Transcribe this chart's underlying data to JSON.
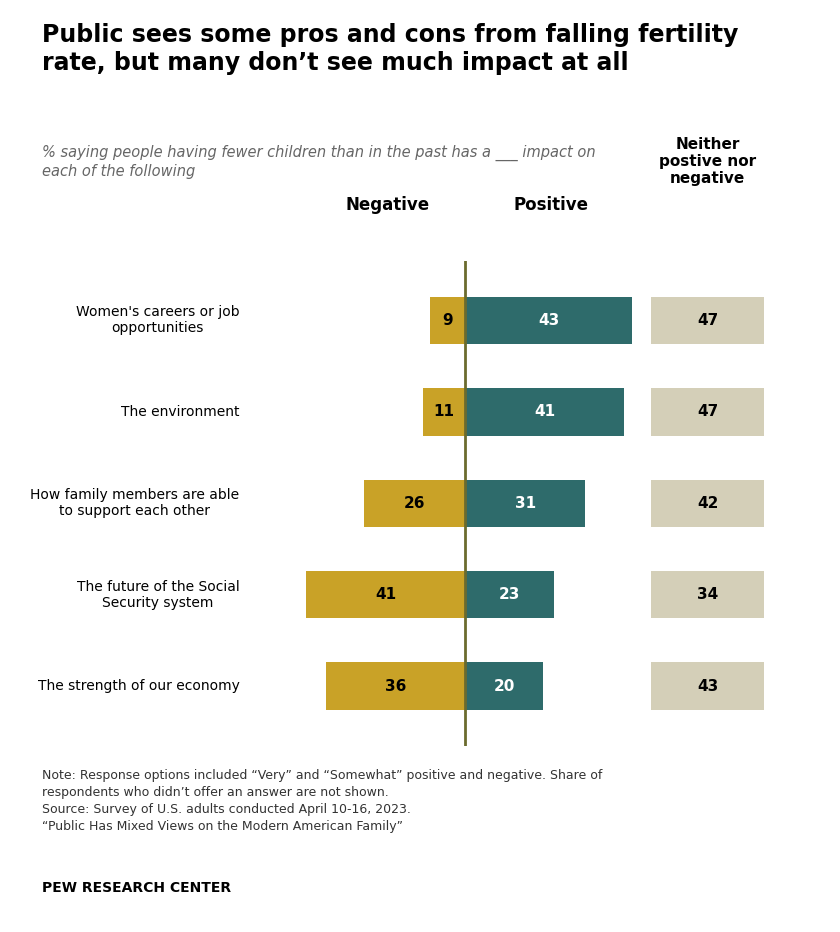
{
  "title": "Public sees some pros and cons from falling fertility\nrate, but many don’t see much impact at all",
  "subtitle": "% saying people having fewer children than in the past has a ___ impact on\neach of the following",
  "categories": [
    "Women's careers or job\nopportunities",
    "The environment",
    "How family members are able\nto support each other",
    "The future of the Social\nSecurity system",
    "The strength of our economy"
  ],
  "negative": [
    9,
    11,
    26,
    41,
    36
  ],
  "positive": [
    43,
    41,
    31,
    23,
    20
  ],
  "neither": [
    47,
    47,
    42,
    34,
    43
  ],
  "negative_color": "#C9A227",
  "positive_color": "#2E6B6B",
  "neither_color": "#D4CFB8",
  "center_line_color": "#6B6B2E",
  "header_negative": "Negative",
  "header_positive": "Positive",
  "header_neither": "Neither\npostive nor\nnegative",
  "note": "Note: Response options included “Very” and “Somewhat” positive and negative. Share of\nrespondents who didn’t offer an answer are not shown.\nSource: Survey of U.S. adults conducted April 10-16, 2023.\n“Public Has Mixed Views on the Modern American Family”",
  "source_label": "PEW RESEARCH CENTER",
  "bar_height": 0.52,
  "scale": 1.0
}
